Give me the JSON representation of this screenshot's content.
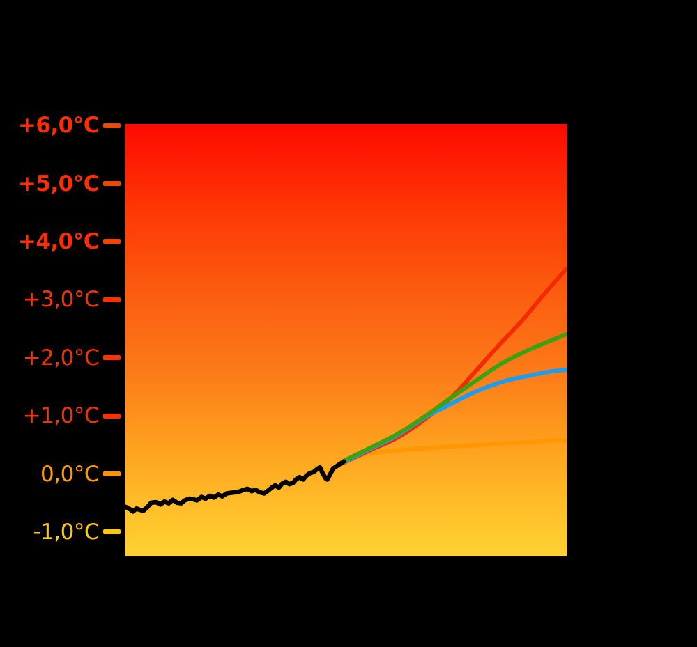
{
  "figure": {
    "background_color": "#000000",
    "has_title": false,
    "has_legend": false,
    "has_x_axis_labels": false
  },
  "y_axis": {
    "side": "left",
    "ticks": [
      {
        "label": "+6,0°C",
        "value": 6.0,
        "text_color": "#fa2e00",
        "tick_color": "#e94a00",
        "bold": true
      },
      {
        "label": "+5,0°C",
        "value": 5.0,
        "text_color": "#fa2e00",
        "tick_color": "#e94a00",
        "bold": true
      },
      {
        "label": "+4,0°C",
        "value": 4.0,
        "text_color": "#fa2e00",
        "tick_color": "#f54200",
        "bold": true
      },
      {
        "label": "+3,0°C",
        "value": 3.0,
        "text_color": "#f63200",
        "tick_color": "#ff3000",
        "bold": false
      },
      {
        "label": "+2,0°C",
        "value": 2.0,
        "text_color": "#f63000",
        "tick_color": "#ff3200",
        "bold": false
      },
      {
        "label": "+1,0°C",
        "value": 1.0,
        "text_color": "#f63000",
        "tick_color": "#ff3000",
        "bold": false
      },
      {
        "label": "0,0°C",
        "value": 0.0,
        "text_color": "#ff9a00",
        "tick_color": "#ff9300",
        "bold": false
      },
      {
        "label": "-1,0°C",
        "value": -1.0,
        "text_color": "#ffcb00",
        "tick_color": "#ffc800",
        "bold": false
      }
    ]
  },
  "chart_data": {
    "type": "line",
    "title": "",
    "xlabel": "",
    "ylabel": "",
    "ylim": [
      -1.45,
      6.0
    ],
    "grid": false,
    "legend_position": "none",
    "x_unit": "fraction_of_plot_width",
    "y_unit": "degrees_C",
    "plot_background_gradient": [
      {
        "pos": 0.0,
        "color": "#fe0a00"
      },
      {
        "pos": 0.2,
        "color": "#fe3805"
      },
      {
        "pos": 0.4,
        "color": "#fc5e10"
      },
      {
        "pos": 0.57,
        "color": "#fc7a18"
      },
      {
        "pos": 0.74,
        "color": "#fea01e"
      },
      {
        "pos": 0.87,
        "color": "#ffbb28"
      },
      {
        "pos": 1.0,
        "color": "#ffd232"
      }
    ],
    "series": [
      {
        "name": "observed-temperature-history",
        "color": "#000000",
        "stroke_width": 6.5,
        "smooth": false,
        "points": [
          [
            0.0,
            -0.59
          ],
          [
            0.01,
            -0.63
          ],
          [
            0.017,
            -0.67
          ],
          [
            0.025,
            -0.62
          ],
          [
            0.032,
            -0.64
          ],
          [
            0.04,
            -0.66
          ],
          [
            0.049,
            -0.6
          ],
          [
            0.058,
            -0.52
          ],
          [
            0.069,
            -0.51
          ],
          [
            0.079,
            -0.55
          ],
          [
            0.088,
            -0.5
          ],
          [
            0.098,
            -0.53
          ],
          [
            0.107,
            -0.47
          ],
          [
            0.117,
            -0.52
          ],
          [
            0.126,
            -0.53
          ],
          [
            0.134,
            -0.48
          ],
          [
            0.144,
            -0.45
          ],
          [
            0.153,
            -0.46
          ],
          [
            0.162,
            -0.48
          ],
          [
            0.172,
            -0.42
          ],
          [
            0.181,
            -0.45
          ],
          [
            0.191,
            -0.4
          ],
          [
            0.2,
            -0.43
          ],
          [
            0.21,
            -0.38
          ],
          [
            0.219,
            -0.41
          ],
          [
            0.229,
            -0.36
          ],
          [
            0.238,
            -0.35
          ],
          [
            0.248,
            -0.34
          ],
          [
            0.257,
            -0.33
          ],
          [
            0.267,
            -0.3
          ],
          [
            0.276,
            -0.28
          ],
          [
            0.285,
            -0.32
          ],
          [
            0.295,
            -0.3
          ],
          [
            0.304,
            -0.34
          ],
          [
            0.314,
            -0.36
          ],
          [
            0.323,
            -0.31
          ],
          [
            0.331,
            -0.26
          ],
          [
            0.339,
            -0.22
          ],
          [
            0.347,
            -0.26
          ],
          [
            0.355,
            -0.19
          ],
          [
            0.363,
            -0.16
          ],
          [
            0.371,
            -0.2
          ],
          [
            0.379,
            -0.18
          ],
          [
            0.386,
            -0.12
          ],
          [
            0.394,
            -0.08
          ],
          [
            0.402,
            -0.12
          ],
          [
            0.41,
            -0.05
          ],
          [
            0.418,
            -0.01
          ],
          [
            0.426,
            0.01
          ],
          [
            0.434,
            0.06
          ],
          [
            0.44,
            0.09
          ],
          [
            0.446,
            -0.01
          ],
          [
            0.453,
            -0.1
          ],
          [
            0.457,
            -0.12
          ],
          [
            0.464,
            -0.02
          ],
          [
            0.47,
            0.07
          ],
          [
            0.478,
            0.11
          ],
          [
            0.486,
            0.15
          ],
          [
            0.494,
            0.19
          ]
        ]
      },
      {
        "name": "projection-low-flat",
        "color": "#ff9800",
        "stroke_width": 6,
        "smooth": true,
        "points": [
          [
            0.494,
            0.19
          ],
          [
            0.513,
            0.25
          ],
          [
            0.536,
            0.31
          ],
          [
            0.56,
            0.34
          ],
          [
            0.599,
            0.37
          ],
          [
            0.662,
            0.41
          ],
          [
            0.726,
            0.44
          ],
          [
            0.789,
            0.47
          ],
          [
            0.852,
            0.5
          ],
          [
            0.915,
            0.52
          ],
          [
            0.954,
            0.55
          ],
          [
            0.978,
            0.56
          ],
          [
            0.997,
            0.54
          ]
        ]
      },
      {
        "name": "projection-high-red",
        "color": "#f22c00",
        "stroke_width": 6,
        "smooth": true,
        "points": [
          [
            0.494,
            0.17
          ],
          [
            0.552,
            0.38
          ],
          [
            0.615,
            0.6
          ],
          [
            0.678,
            0.92
          ],
          [
            0.741,
            1.32
          ],
          [
            0.808,
            1.88
          ],
          [
            0.852,
            2.25
          ],
          [
            0.899,
            2.63
          ],
          [
            0.946,
            3.06
          ],
          [
            0.997,
            3.5
          ]
        ]
      },
      {
        "name": "projection-mid-blue",
        "color": "#1e9cf0",
        "stroke_width": 6,
        "smooth": true,
        "points": [
          [
            0.494,
            0.18
          ],
          [
            0.552,
            0.4
          ],
          [
            0.615,
            0.64
          ],
          [
            0.678,
            0.95
          ],
          [
            0.726,
            1.14
          ],
          [
            0.789,
            1.38
          ],
          [
            0.852,
            1.56
          ],
          [
            0.915,
            1.67
          ],
          [
            0.962,
            1.74
          ],
          [
            0.997,
            1.77
          ]
        ]
      },
      {
        "name": "projection-midhigh-green",
        "color": "#3da212",
        "stroke_width": 6,
        "smooth": true,
        "points": [
          [
            0.494,
            0.2
          ],
          [
            0.552,
            0.42
          ],
          [
            0.615,
            0.66
          ],
          [
            0.678,
            0.97
          ],
          [
            0.726,
            1.23
          ],
          [
            0.789,
            1.56
          ],
          [
            0.852,
            1.88
          ],
          [
            0.915,
            2.12
          ],
          [
            0.962,
            2.27
          ],
          [
            0.997,
            2.38
          ]
        ]
      }
    ]
  }
}
